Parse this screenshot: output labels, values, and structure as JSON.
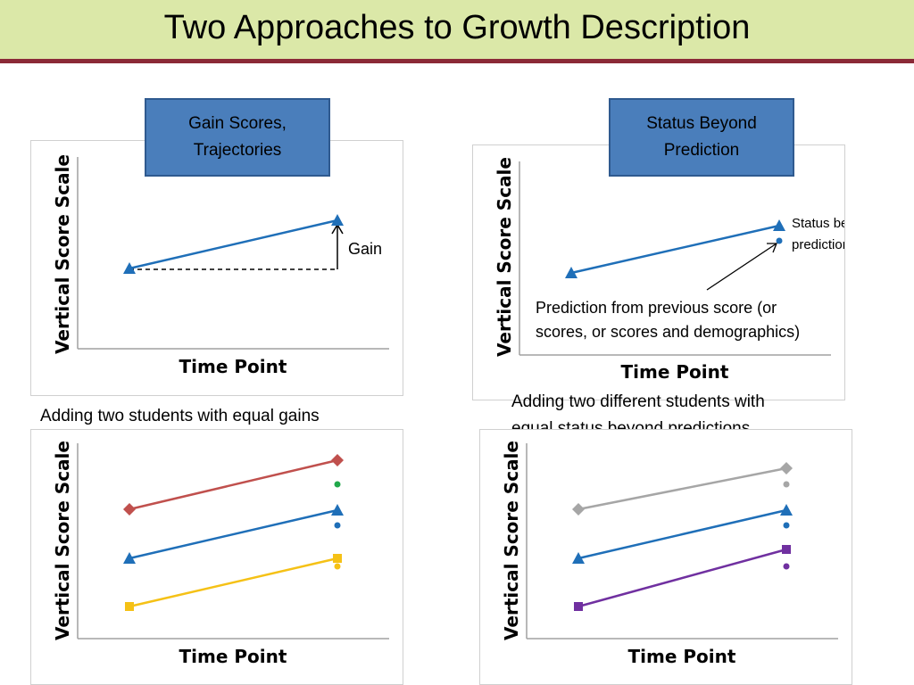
{
  "title": "Two Approaches to Growth Description",
  "boxes": {
    "gain": {
      "line1": "Gain Scores,",
      "line2": "Trajectories"
    },
    "status": {
      "line1": "Status Beyond",
      "line2": "Prediction"
    }
  },
  "axes": {
    "ylabel": "Vertical Score Scale",
    "xlabel": "Time Point"
  },
  "notes": {
    "gain": "Gain",
    "status_line1": "Status beyond",
    "status_line2": "prediction",
    "prediction_line1": "Prediction from previous score (or",
    "prediction_line2": "scores, or scores and demographics)"
  },
  "captions": {
    "bottom_left": "Adding two students with equal gains",
    "bottom_right_line1": "Adding two different students with",
    "bottom_right_line2": "equal status beyond predictions."
  },
  "colors": {
    "blue": "#1f6fb8",
    "red": "#c0504d",
    "yellow": "#f5c116",
    "green": "#20a84a",
    "gray": "#a6a6a6",
    "purple": "#7030a0",
    "title_bg": "#dbe8a8",
    "title_rule": "#8b2a37",
    "box_fill": "#4a7ebb"
  },
  "icons": {
    "triangle": "triangle-marker-icon",
    "diamond": "diamond-marker-icon",
    "square": "square-marker-icon",
    "dot": "dot-marker-icon",
    "arrow": "arrow-icon"
  }
}
